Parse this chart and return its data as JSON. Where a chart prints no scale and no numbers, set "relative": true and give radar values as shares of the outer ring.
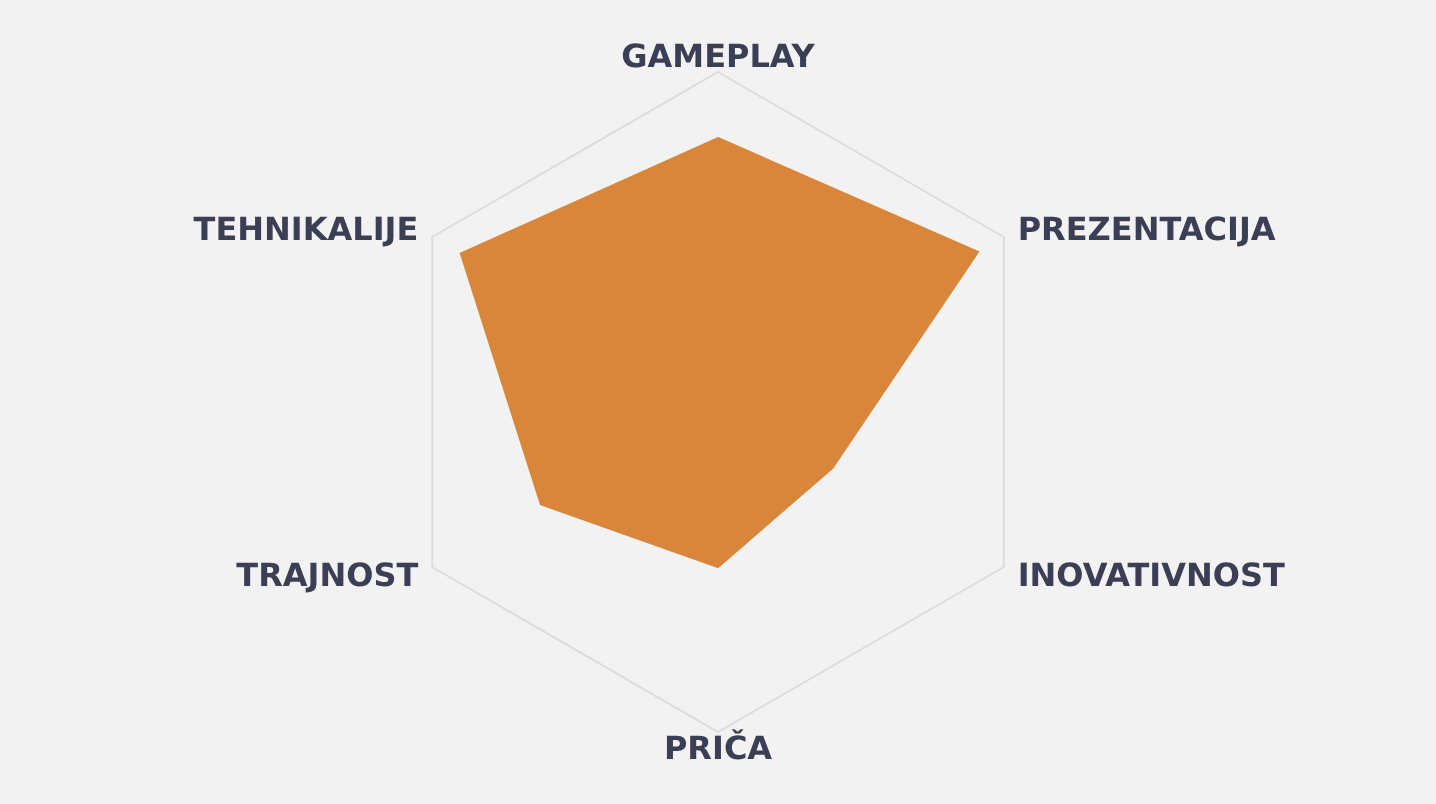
{
  "chart_data": {
    "type": "radar",
    "categories": [
      "GAMEPLAY",
      "PREZENTACIJA",
      "INOVATIVNOST",
      "PRIČA",
      "TRAJNOST",
      "TEHNIKALIJE"
    ],
    "series": [
      {
        "color": "#d9863b",
        "values": [
          0.8,
          0.91,
          0.4,
          0.5,
          0.62,
          0.9
        ]
      }
    ],
    "relative": true,
    "grid": true
  }
}
